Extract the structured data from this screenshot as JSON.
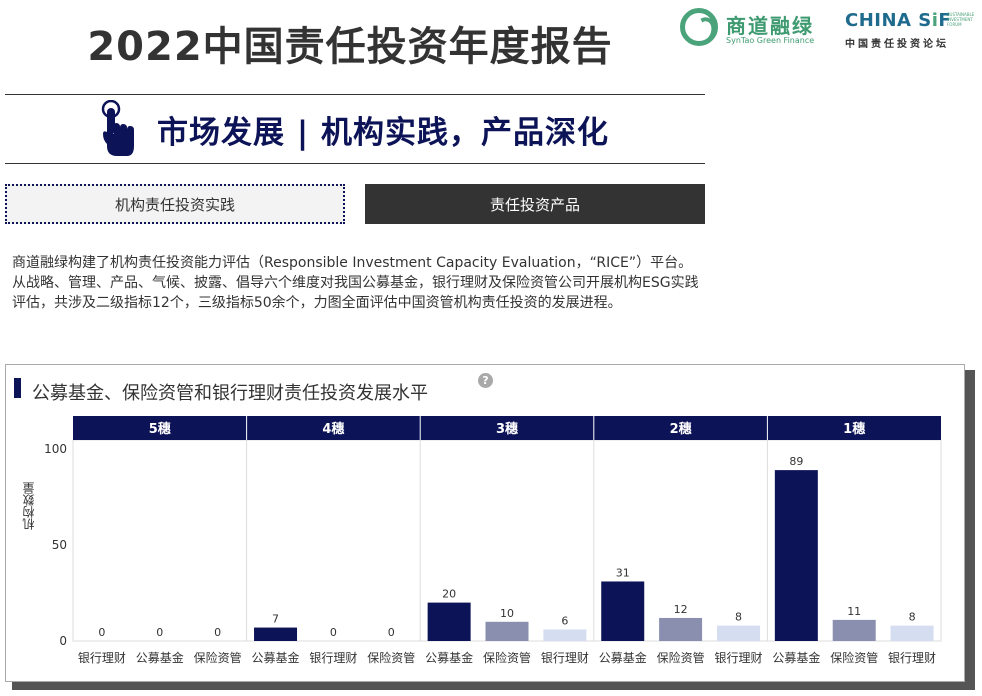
{
  "header": {
    "title": "2022中国责任投资年度报告",
    "logo1_cn": "商道融绿",
    "logo1_en": "SynTao Green Finance",
    "logo2_name_a": "CHINA S",
    "logo2_name_b": "i",
    "logo2_name_c": "F",
    "logo2_tag": "SUSTAINABLE INVESTMENT FORUM",
    "logo2_sub": "中国责任投资论坛"
  },
  "section": {
    "title": "市场发展 | 机构实践，产品深化",
    "icon": "pointing-hand-icon"
  },
  "tabs": [
    {
      "label": "机构责任投资实践",
      "active": false
    },
    {
      "label": "责任投资产品",
      "active": true
    }
  ],
  "description": "商道融绿构建了机构责任投资能力评估（Responsible Investment Capacity Evaluation，“RICE”）平台。从战略、管理、产品、气候、披露、倡导六个维度对我国公募基金，银行理财及保险资管公司开展机构ESG实践评估，共涉及二级指标12个，三级指标50余个，力图全面评估中国资管机构责任投资的发展进程。",
  "card": {
    "title": "公募基金、保险资管和银行理财责任投资发展水平",
    "help": "?"
  },
  "colors": {
    "navy": "#0d1357",
    "mid": "#8a8fb0",
    "light": "#d5def0"
  },
  "chart_data": {
    "type": "bar",
    "ylabel": "机构数量",
    "ylim": [
      0,
      100
    ],
    "yticks": [
      0,
      50,
      100
    ],
    "groups": [
      {
        "name": "5穗",
        "bars": [
          {
            "label": "银行理财",
            "value": 0,
            "color": "light"
          },
          {
            "label": "公募基金",
            "value": 0,
            "color": "navy"
          },
          {
            "label": "保险资管",
            "value": 0,
            "color": "mid"
          }
        ]
      },
      {
        "name": "4穗",
        "bars": [
          {
            "label": "公募基金",
            "value": 7,
            "color": "navy"
          },
          {
            "label": "银行理财",
            "value": 0,
            "color": "light"
          },
          {
            "label": "保险资管",
            "value": 0,
            "color": "mid"
          }
        ]
      },
      {
        "name": "3穗",
        "bars": [
          {
            "label": "公募基金",
            "value": 20,
            "color": "navy"
          },
          {
            "label": "保险资管",
            "value": 10,
            "color": "mid"
          },
          {
            "label": "银行理财",
            "value": 6,
            "color": "light"
          }
        ]
      },
      {
        "name": "2穗",
        "bars": [
          {
            "label": "公募基金",
            "value": 31,
            "color": "navy"
          },
          {
            "label": "保险资管",
            "value": 12,
            "color": "mid"
          },
          {
            "label": "银行理财",
            "value": 8,
            "color": "light"
          }
        ]
      },
      {
        "name": "1穗",
        "bars": [
          {
            "label": "公募基金",
            "value": 89,
            "color": "navy"
          },
          {
            "label": "保险资管",
            "value": 11,
            "color": "mid"
          },
          {
            "label": "银行理财",
            "value": 8,
            "color": "light"
          }
        ]
      }
    ]
  }
}
